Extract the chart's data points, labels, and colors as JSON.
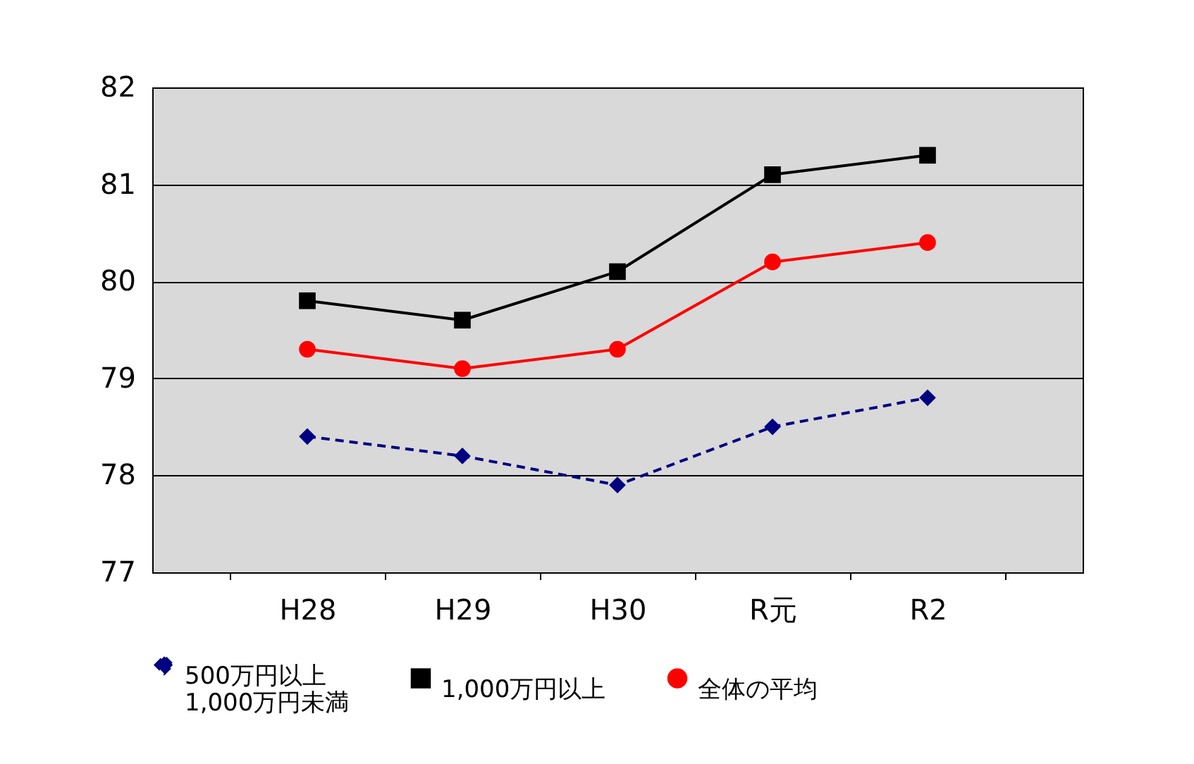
{
  "chart_data": {
    "type": "line",
    "categories": [
      "H28",
      "H29",
      "H30",
      "R元",
      "R2"
    ],
    "series": [
      {
        "name": "500万円以上 1,000万円未満",
        "color": "#000080",
        "marker": "diamond",
        "line_style": "dashed",
        "values": [
          78.4,
          78.2,
          77.9,
          78.5,
          78.8
        ]
      },
      {
        "name": "1,000万円以上",
        "color": "#000000",
        "marker": "square",
        "line_style": "solid",
        "values": [
          79.8,
          79.6,
          80.1,
          81.1,
          81.3
        ]
      },
      {
        "name": "全体の平均",
        "color": "#ff0000",
        "marker": "circle",
        "line_style": "solid",
        "values": [
          79.3,
          79.1,
          79.3,
          80.2,
          80.4
        ]
      }
    ],
    "ylim": [
      77,
      82
    ],
    "yticks": [
      77,
      78,
      79,
      80,
      81,
      82
    ],
    "grid": "y",
    "legend": "bottom"
  }
}
